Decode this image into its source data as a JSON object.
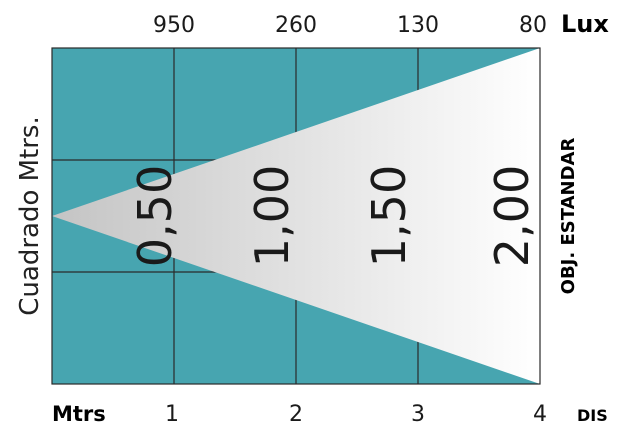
{
  "lux": {
    "values": [
      "950",
      "260",
      "130",
      "80"
    ],
    "unit": "Lux"
  },
  "distance": {
    "label": "Mtrs",
    "values": [
      "1",
      "2",
      "3",
      "4"
    ],
    "unit": "DIS"
  },
  "left_label": "Cuadrado Mtrs.",
  "right_label": "OBJ. ESTANDAR",
  "diameters": [
    "0,50",
    "1,00",
    "1,50",
    "2,00"
  ],
  "colors": {
    "grid_bg": "#47a5b0",
    "grid_lines": "#2a2a2a",
    "beam_light": "#ffffff",
    "beam_dark": "#c6c6c6"
  }
}
